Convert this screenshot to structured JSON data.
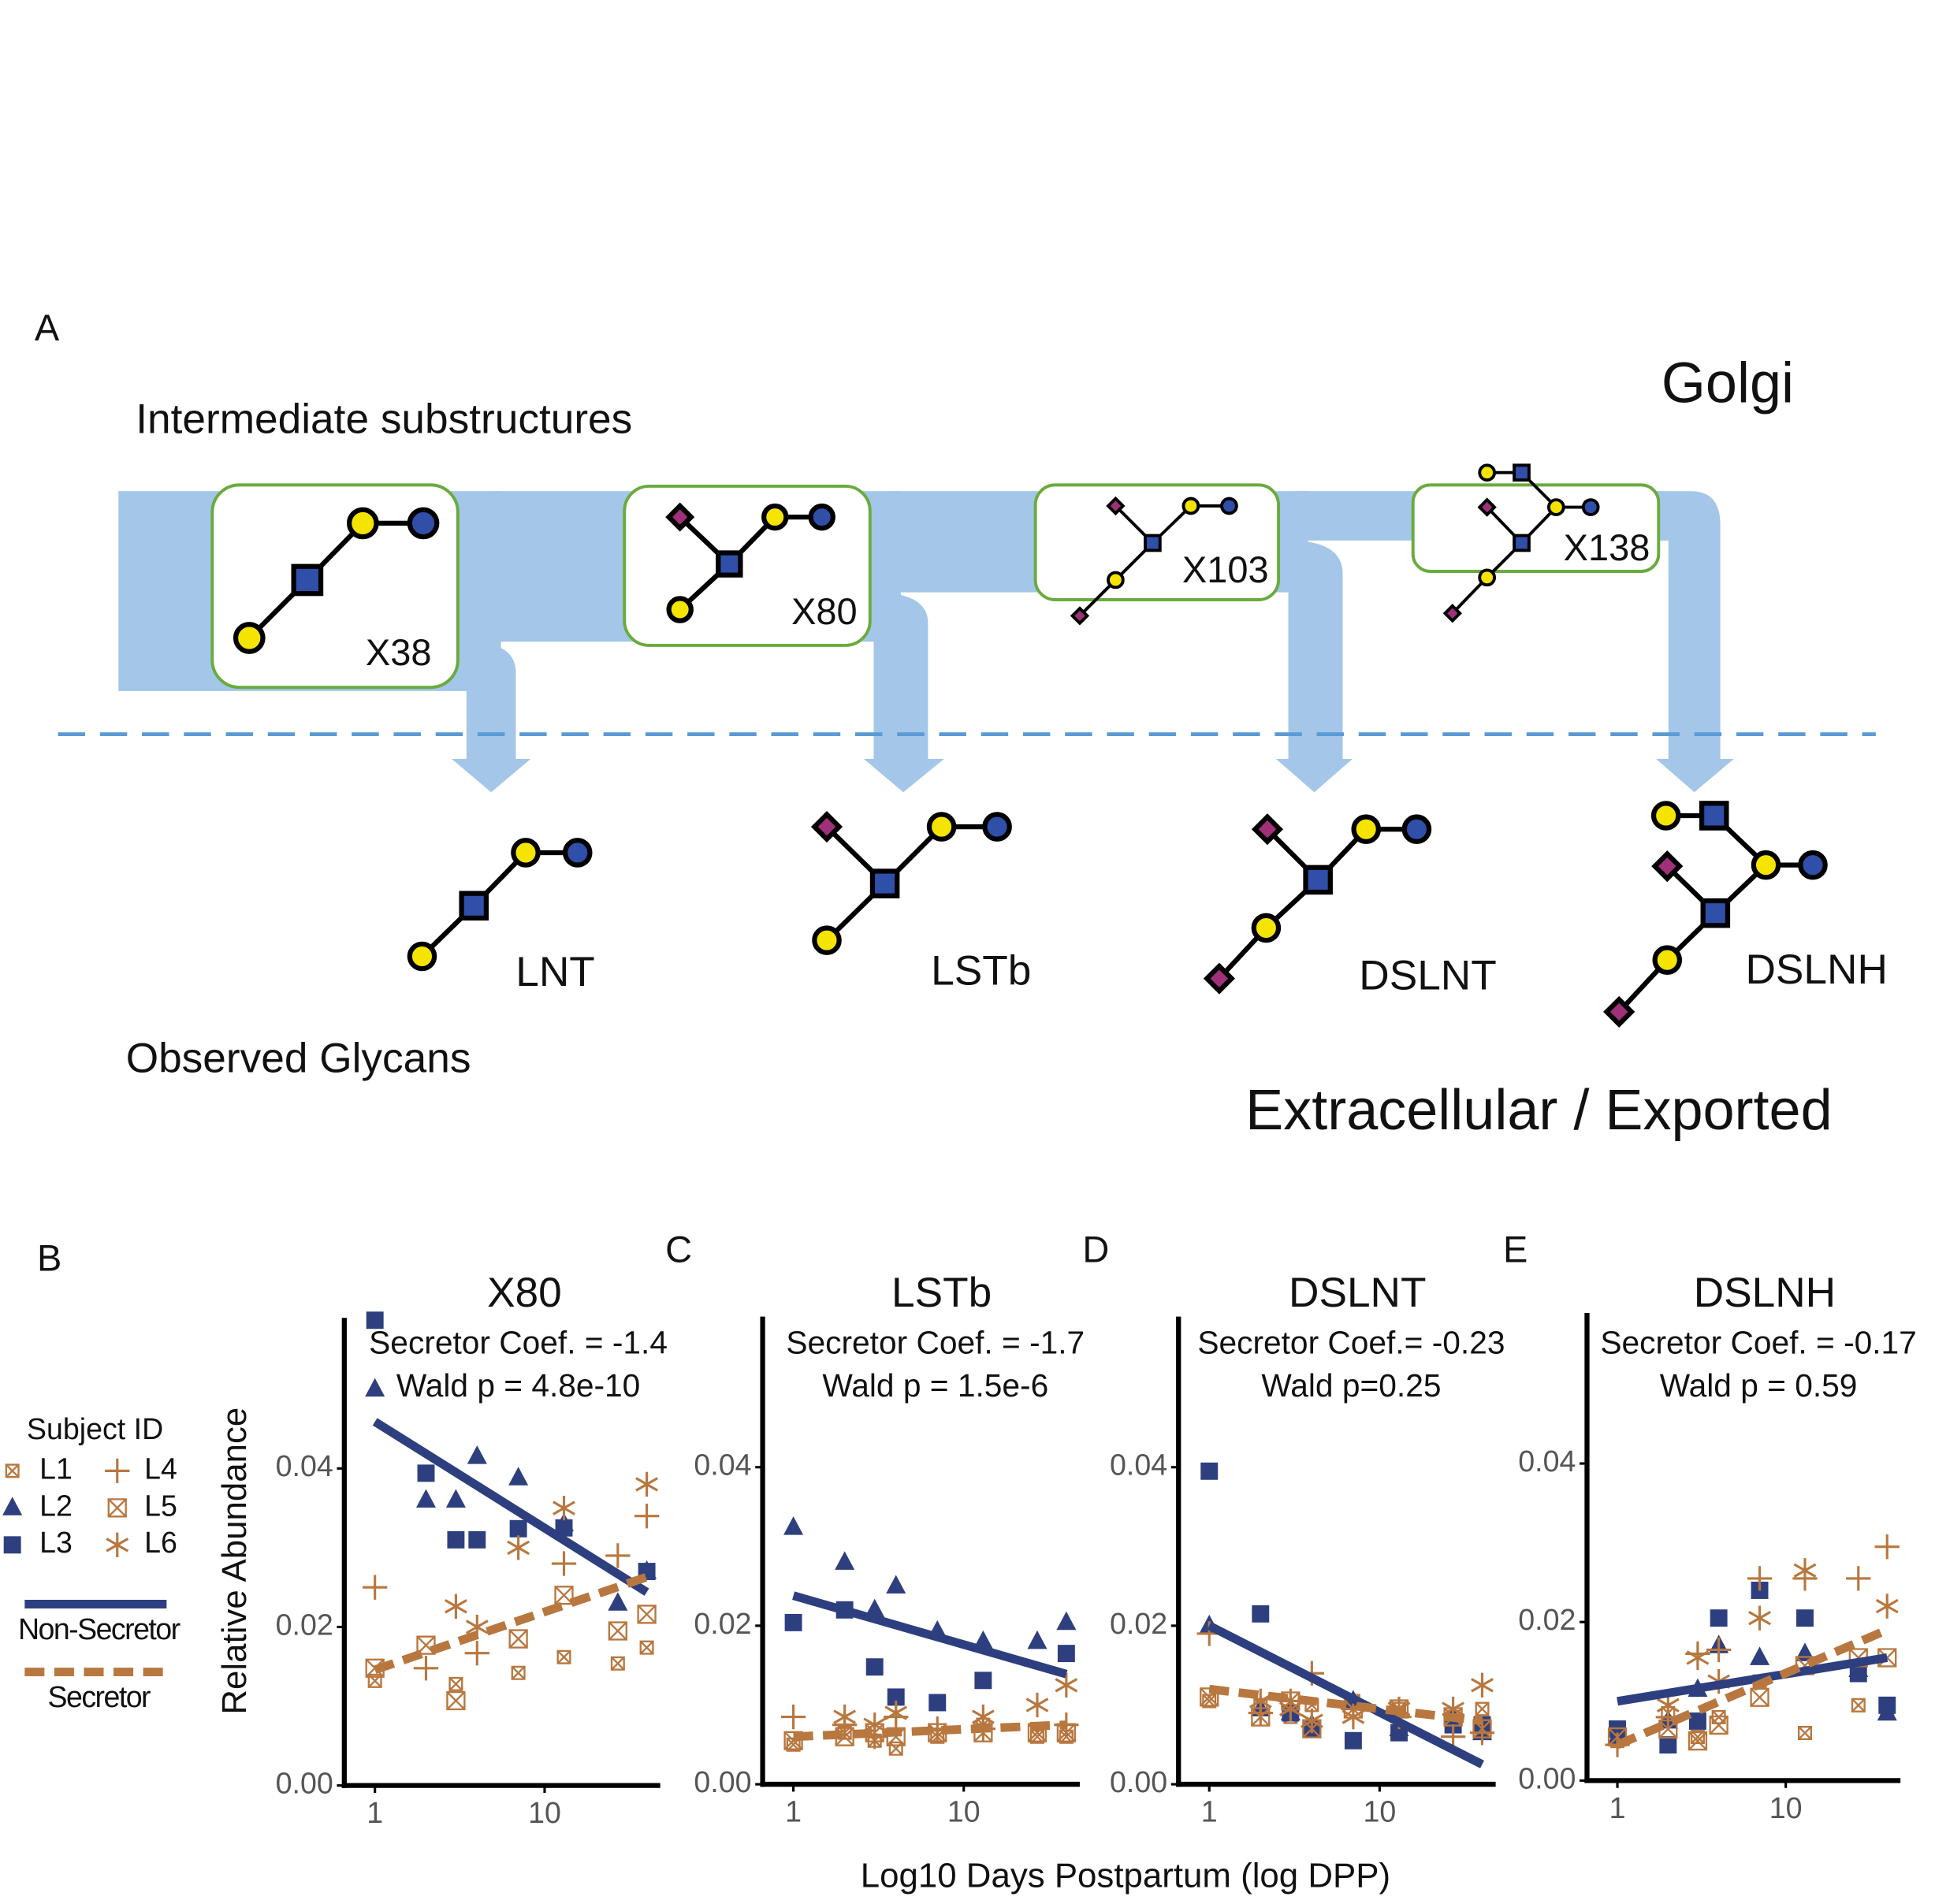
{
  "diagram": {
    "label": "A",
    "golgi": "Golgi",
    "intermediate_label": "Intermediate substructures",
    "observed_label": "Observed Glycans",
    "export_label": "Extracellular / Exported",
    "substructures": [
      "X38",
      "X80",
      "X103",
      "X138"
    ],
    "glycans": [
      "LNT",
      "LSTb",
      "DSLNT",
      "DSLNH"
    ]
  },
  "figure": {
    "ylabel": "Relative Abundance",
    "xlabel": "Log10 Days Postpartum (log DPP)",
    "legend_title": "Subject ID"
  },
  "chart_data": [
    {
      "type": "scatter",
      "panel": "B",
      "title": "X80",
      "annotations": [
        "Secretor Coef. = -1.4",
        "Wald p = 4.8e-10"
      ],
      "x": [
        1,
        2,
        3,
        4,
        7,
        13,
        27,
        40
      ],
      "xscale": "log",
      "xlim": [
        0.66,
        48
      ],
      "xticks": [
        1,
        10
      ],
      "ylim": [
        0,
        0.059
      ],
      "yticks": [
        {
          "value": 0,
          "label": "0.00"
        },
        {
          "value": 0.02,
          "label": "0.02"
        },
        {
          "value": 0.04,
          "label": "0.04"
        }
      ],
      "series": [
        {
          "name": "L1",
          "color": "#b8773f",
          "marker": "box-x-small",
          "values": [
            0.0132,
            null,
            0.0128,
            null,
            0.0142,
            0.0162,
            0.0154,
            0.0174
          ]
        },
        {
          "name": "L2",
          "color": "#2e3f7f",
          "marker": "triangle",
          "values": [
            0.05,
            0.036,
            0.036,
            0.0415,
            0.0388,
            0.033,
            0.023,
            0.027
          ]
        },
        {
          "name": "L3",
          "color": "#2e3f7f",
          "marker": "square",
          "values": [
            0.0587,
            0.0394,
            0.031,
            0.031,
            0.0324,
            0.0325,
            null,
            0.027
          ]
        },
        {
          "name": "L4",
          "color": "#b8773f",
          "marker": "plus",
          "values": [
            0.025,
            0.0148,
            null,
            0.0167,
            null,
            0.028,
            0.029,
            0.034
          ]
        },
        {
          "name": "L5",
          "color": "#b8773f",
          "marker": "box-x",
          "values": [
            0.0148,
            0.0177,
            0.0107,
            null,
            0.0185,
            0.024,
            0.0195,
            0.0216
          ]
        },
        {
          "name": "L6",
          "color": "#b8773f",
          "marker": "asterisk",
          "values": [
            null,
            null,
            0.0226,
            0.02,
            0.03,
            0.035,
            null,
            0.038
          ]
        }
      ],
      "fits": [
        {
          "name": "Non-Secretor",
          "color": "#2e3f7f",
          "style": "solid",
          "x": [
            1,
            40
          ],
          "values": [
            0.0459,
            0.0244
          ]
        },
        {
          "name": "Secretor",
          "color": "#b8773f",
          "style": "dashed",
          "x": [
            1,
            40
          ],
          "values": [
            0.0146,
            0.0263
          ]
        }
      ]
    },
    {
      "type": "scatter",
      "panel": "C",
      "title": "LSTb",
      "annotations": [
        "Secretor Coef. = -1.7",
        "Wald p = 1.5e-6"
      ],
      "x": [
        1,
        2,
        3,
        4,
        7,
        13,
        27,
        40
      ],
      "xscale": "log",
      "xlim": [
        0.66,
        48
      ],
      "xticks": [
        1,
        10
      ],
      "ylim": [
        0,
        0.059
      ],
      "yticks": [
        {
          "value": 0,
          "label": "0.00"
        },
        {
          "value": 0.02,
          "label": "0.02"
        },
        {
          "value": 0.04,
          "label": "0.04"
        }
      ],
      "series": [
        {
          "name": "L1",
          "color": "#b8773f",
          "marker": "box-x-small",
          "values": [
            0.005,
            0.0065,
            0.0055,
            0.0045,
            0.006,
            0.0075,
            0.006,
            0.006
          ]
        },
        {
          "name": "L2",
          "color": "#2e3f7f",
          "marker": "triangle",
          "values": [
            0.0324,
            0.028,
            0.022,
            0.025,
            0.0193,
            0.018,
            0.018,
            0.0204
          ]
        },
        {
          "name": "L3",
          "color": "#2e3f7f",
          "marker": "square",
          "values": [
            0.0204,
            0.022,
            0.0148,
            0.011,
            0.0103,
            0.0131,
            null,
            0.0165
          ]
        },
        {
          "name": "L4",
          "color": "#b8773f",
          "marker": "plus",
          "values": [
            0.0085,
            0.0075,
            0.006,
            0.0085,
            0.007,
            0.007,
            null,
            0.0075
          ]
        },
        {
          "name": "L5",
          "color": "#b8773f",
          "marker": "box-x",
          "values": [
            0.0055,
            0.006,
            0.0065,
            0.006,
            0.0065,
            0.0065,
            0.0065,
            0.0065
          ]
        },
        {
          "name": "L6",
          "color": "#b8773f",
          "marker": "asterisk",
          "values": [
            null,
            0.0085,
            0.0075,
            0.009,
            null,
            0.0085,
            0.01,
            0.0125
          ]
        }
      ],
      "fits": [
        {
          "name": "Non-Secretor",
          "color": "#2e3f7f",
          "style": "solid",
          "x": [
            1,
            40
          ],
          "values": [
            0.0238,
            0.0139
          ]
        },
        {
          "name": "Secretor",
          "color": "#b8773f",
          "style": "dashed",
          "x": [
            1,
            40
          ],
          "values": [
            0.006,
            0.0075
          ]
        }
      ]
    },
    {
      "type": "scatter",
      "panel": "D",
      "title": "DSLNT",
      "annotations": [
        "Secretor Coef.= -0.23",
        "Wald p=0.25"
      ],
      "x": [
        1,
        2,
        3,
        4,
        7,
        13,
        27,
        40
      ],
      "xscale": "log",
      "xlim": [
        0.66,
        48
      ],
      "xticks": [
        1,
        10
      ],
      "ylim": [
        0,
        0.059
      ],
      "yticks": [
        {
          "value": 0,
          "label": "0.00"
        },
        {
          "value": 0.02,
          "label": "0.02"
        },
        {
          "value": 0.04,
          "label": "0.04"
        }
      ],
      "series": [
        {
          "name": "L1",
          "color": "#b8773f",
          "marker": "box-x-small",
          "values": [
            0.0105,
            0.01,
            0.0085,
            0.01,
            0.0105,
            0.0095,
            0.0085,
            0.0095
          ]
        },
        {
          "name": "L2",
          "color": "#2e3f7f",
          "marker": "triangle",
          "values": [
            0.02,
            0.0095,
            0.009,
            0.0075,
            0.0105,
            0.007,
            0.0085,
            0.0065
          ]
        },
        {
          "name": "L3",
          "color": "#2e3f7f",
          "marker": "square",
          "values": [
            0.0395,
            0.0215,
            0.009,
            0.007,
            0.0055,
            0.0065,
            0.0075,
            0.0075
          ]
        },
        {
          "name": "L4",
          "color": "#b8773f",
          "marker": "plus",
          "values": [
            0.019,
            0.009,
            0.0105,
            0.014,
            0.0095,
            0.0085,
            0.006,
            0.0065
          ]
        },
        {
          "name": "L5",
          "color": "#b8773f",
          "marker": "box-x",
          "values": [
            0.011,
            0.0085,
            0.0105,
            0.007,
            0.0095,
            0.0095,
            0.0085,
            0.007
          ]
        },
        {
          "name": "L6",
          "color": "#b8773f",
          "marker": "asterisk",
          "values": [
            null,
            0.0105,
            0.0095,
            0.008,
            0.0085,
            0.0095,
            0.0095,
            0.0125
          ]
        }
      ],
      "fits": [
        {
          "name": "Non-Secretor",
          "color": "#2e3f7f",
          "style": "solid",
          "x": [
            1,
            40
          ],
          "values": [
            0.02,
            0.0025
          ]
        },
        {
          "name": "Secretor",
          "color": "#b8773f",
          "style": "dashed",
          "x": [
            1,
            40
          ],
          "values": [
            0.012,
            0.008
          ]
        }
      ]
    },
    {
      "type": "scatter",
      "panel": "E",
      "title": "DSLNH",
      "annotations": [
        "Secretor Coef. = -0.17",
        "Wald p = 0.59"
      ],
      "x": [
        1,
        2,
        3,
        4,
        7,
        13,
        27,
        40
      ],
      "xscale": "log",
      "xlim": [
        0.66,
        48
      ],
      "xticks": [
        1,
        10
      ],
      "ylim": [
        0,
        0.059
      ],
      "yticks": [
        {
          "value": 0,
          "label": "0.00"
        },
        {
          "value": 0.02,
          "label": "0.02"
        },
        {
          "value": 0.04,
          "label": "0.04"
        }
      ],
      "series": [
        {
          "name": "L1",
          "color": "#b8773f",
          "marker": "box-x-small",
          "values": [
            0.005,
            0.0085,
            0.0055,
            0.008,
            0.0125,
            0.006,
            0.0095,
            0.0085
          ]
        },
        {
          "name": "L2",
          "color": "#2e3f7f",
          "marker": "triangle",
          "values": [
            0.0055,
            0.0075,
            0.0115,
            0.017,
            0.0155,
            0.016,
            0.014,
            0.0085
          ]
        },
        {
          "name": "L3",
          "color": "#2e3f7f",
          "marker": "square",
          "values": [
            0.0065,
            0.0045,
            0.0075,
            0.0205,
            0.024,
            0.0205,
            0.0135,
            0.0095
          ]
        },
        {
          "name": "L4",
          "color": "#b8773f",
          "marker": "plus",
          "values": [
            0.0045,
            0.008,
            0.016,
            0.0165,
            0.0255,
            0.0255,
            0.0255,
            0.0295
          ]
        },
        {
          "name": "L5",
          "color": "#b8773f",
          "marker": "box-x",
          "values": [
            0.0055,
            0.0065,
            0.005,
            0.007,
            0.0105,
            0.0145,
            0.0155,
            0.0155
          ]
        },
        {
          "name": "L6",
          "color": "#b8773f",
          "marker": "asterisk",
          "values": [
            null,
            0.0095,
            0.0155,
            0.0125,
            0.0205,
            0.0265,
            null,
            0.022
          ]
        }
      ],
      "fits": [
        {
          "name": "Non-Secretor",
          "color": "#2e3f7f",
          "style": "solid",
          "x": [
            1,
            40
          ],
          "values": [
            0.01,
            0.0155
          ]
        },
        {
          "name": "Secretor",
          "color": "#b8773f",
          "style": "dashed",
          "x": [
            1,
            40
          ],
          "values": [
            0.0045,
            0.019
          ]
        }
      ]
    }
  ]
}
